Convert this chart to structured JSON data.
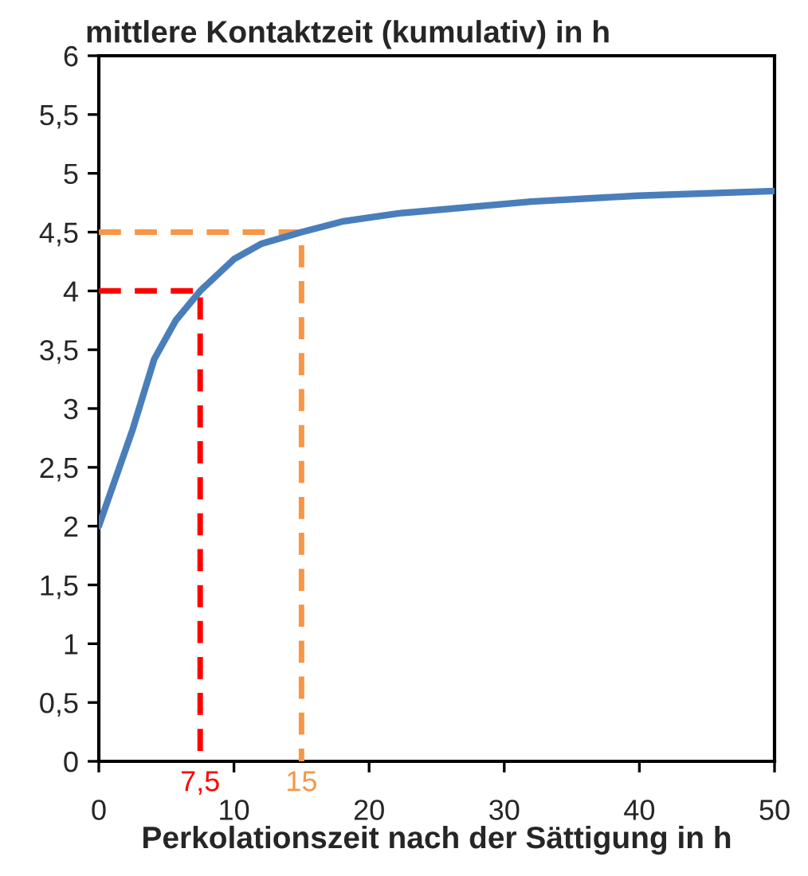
{
  "chart_data": {
    "type": "line",
    "title": "mittlere Kontaktzeit (kumulativ) in h",
    "xlabel": "Perkolationszeit nach der Sättigung in h",
    "series": [
      {
        "color": "#4a7ebb",
        "x": [
          0,
          2.5,
          4.1,
          5.7,
          7.5,
          10,
          12,
          15,
          18,
          22.2,
          32,
          39.9,
          50
        ],
        "values": [
          2,
          2.82,
          3.42,
          3.75,
          4,
          4.27,
          4.4,
          4.5,
          4.59,
          4.66,
          4.76,
          4.81,
          4.85
        ]
      },
      {
        "color": "#ff0000",
        "line_style": "dashed",
        "x": [
          0,
          7.5,
          7.5
        ],
        "values": [
          4,
          4,
          0
        ]
      },
      {
        "color": "#f79646",
        "line_style": "dashed",
        "x": [
          0,
          15,
          15
        ],
        "values": [
          4.5,
          4.5,
          0
        ]
      }
    ],
    "annotations": [
      {
        "text": "7,5",
        "x": 7.5,
        "y": 0
      },
      {
        "text": "15",
        "x": 15,
        "y": 0
      }
    ],
    "xlim": [
      0,
      50
    ],
    "xticks": [
      0,
      10,
      20,
      30,
      40,
      50
    ],
    "ylim": [
      0,
      6
    ],
    "yticks": [
      0,
      {
        "value": 0.5,
        "label": "0,5"
      },
      1,
      {
        "value": 1.5,
        "label": "1,5"
      },
      2,
      {
        "value": 2.5,
        "label": "2,5"
      },
      3,
      {
        "value": 3.5,
        "label": "3,5"
      },
      4,
      {
        "value": 4.5,
        "label": "4,5"
      },
      5,
      {
        "value": 5.5,
        "label": "5,5"
      },
      6
    ],
    "grid": false,
    "legend": false,
    "marker": "none"
  }
}
